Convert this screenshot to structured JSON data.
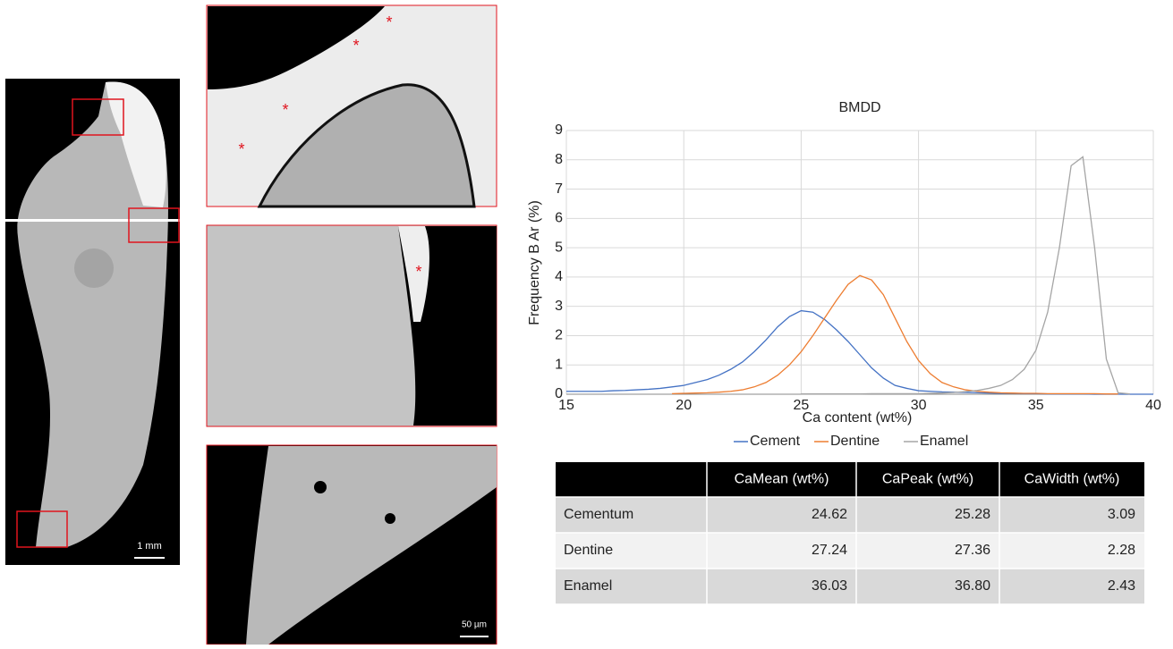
{
  "images": {
    "scale_bars": [
      "1 mm",
      "50 µm"
    ],
    "asterisk": "*"
  },
  "chart_data": {
    "type": "line",
    "title": "BMDD",
    "x_label": "Ca content (wt%)",
    "y_label": "Frequency B Ar (%)",
    "x": [
      15,
      15.5,
      16,
      16.5,
      17,
      17.5,
      18,
      18.5,
      19,
      19.5,
      20,
      20.5,
      21,
      21.5,
      22,
      22.5,
      23,
      23.5,
      24,
      24.5,
      25,
      25.5,
      26,
      26.5,
      27,
      27.5,
      28,
      28.5,
      29,
      29.5,
      30,
      30.5,
      31,
      31.5,
      32,
      32.5,
      33,
      33.5,
      34,
      34.5,
      35,
      35.5,
      36,
      36.5,
      37,
      37.5,
      38,
      38.5,
      39,
      39.5,
      40
    ],
    "series": [
      {
        "name": "Cement",
        "color": "#4472c4",
        "values": [
          0.1,
          0.1,
          0.1,
          0.1,
          0.12,
          0.13,
          0.15,
          0.17,
          0.2,
          0.25,
          0.3,
          0.4,
          0.5,
          0.65,
          0.85,
          1.1,
          1.45,
          1.85,
          2.3,
          2.65,
          2.85,
          2.8,
          2.55,
          2.2,
          1.8,
          1.35,
          0.9,
          0.55,
          0.3,
          0.2,
          0.12,
          0.1,
          0.08,
          0.07,
          0.06,
          0.05,
          0.04,
          0.03,
          0.03,
          0.02,
          0.02,
          0.01,
          0.01,
          0.01,
          0.01,
          0,
          0,
          0,
          0,
          0,
          0
        ]
      },
      {
        "name": "Dentine",
        "color": "#ed7d31",
        "values": [
          null,
          null,
          null,
          null,
          null,
          null,
          null,
          null,
          null,
          0.02,
          0.03,
          0.04,
          0.05,
          0.07,
          0.1,
          0.15,
          0.25,
          0.4,
          0.65,
          1.0,
          1.45,
          2.0,
          2.6,
          3.2,
          3.75,
          4.05,
          3.9,
          3.4,
          2.6,
          1.8,
          1.15,
          0.7,
          0.4,
          0.25,
          0.15,
          0.1,
          0.07,
          0.05,
          0.04,
          0.03,
          0.03,
          0.02,
          0.02,
          0.02,
          0.02,
          0.02,
          0.01,
          0.01,
          null,
          null,
          null
        ]
      },
      {
        "name": "Enamel",
        "color": "#a5a5a5",
        "values": [
          null,
          null,
          null,
          null,
          null,
          null,
          null,
          null,
          null,
          null,
          null,
          null,
          null,
          null,
          null,
          null,
          null,
          null,
          null,
          null,
          0.01,
          0.01,
          0.01,
          0.01,
          0.01,
          0.01,
          0.02,
          0.02,
          0.02,
          0.02,
          0.02,
          0.03,
          0.04,
          0.06,
          0.09,
          0.13,
          0.2,
          0.3,
          0.5,
          0.85,
          1.5,
          2.8,
          5.0,
          7.8,
          8.1,
          5.0,
          1.2,
          0.05,
          0.01,
          null,
          null
        ]
      }
    ],
    "xlim": [
      15,
      40
    ],
    "xticks": [
      15,
      20,
      25,
      30,
      35,
      40
    ],
    "ylim": [
      0,
      9
    ],
    "yticks": [
      0,
      1,
      2,
      3,
      4,
      5,
      6,
      7,
      8,
      9
    ],
    "grid": true,
    "legend": "bottom"
  },
  "table": {
    "header": [
      "CaMean (wt%)",
      "CaPeak (wt%)",
      "CaWidth (wt%)"
    ],
    "rows": [
      [
        "Cementum",
        "24.62",
        "25.28",
        "3.09"
      ],
      [
        "Dentine",
        "27.24",
        "27.36",
        "2.28"
      ],
      [
        "Enamel",
        "36.03",
        "36.80",
        "2.43"
      ]
    ]
  }
}
